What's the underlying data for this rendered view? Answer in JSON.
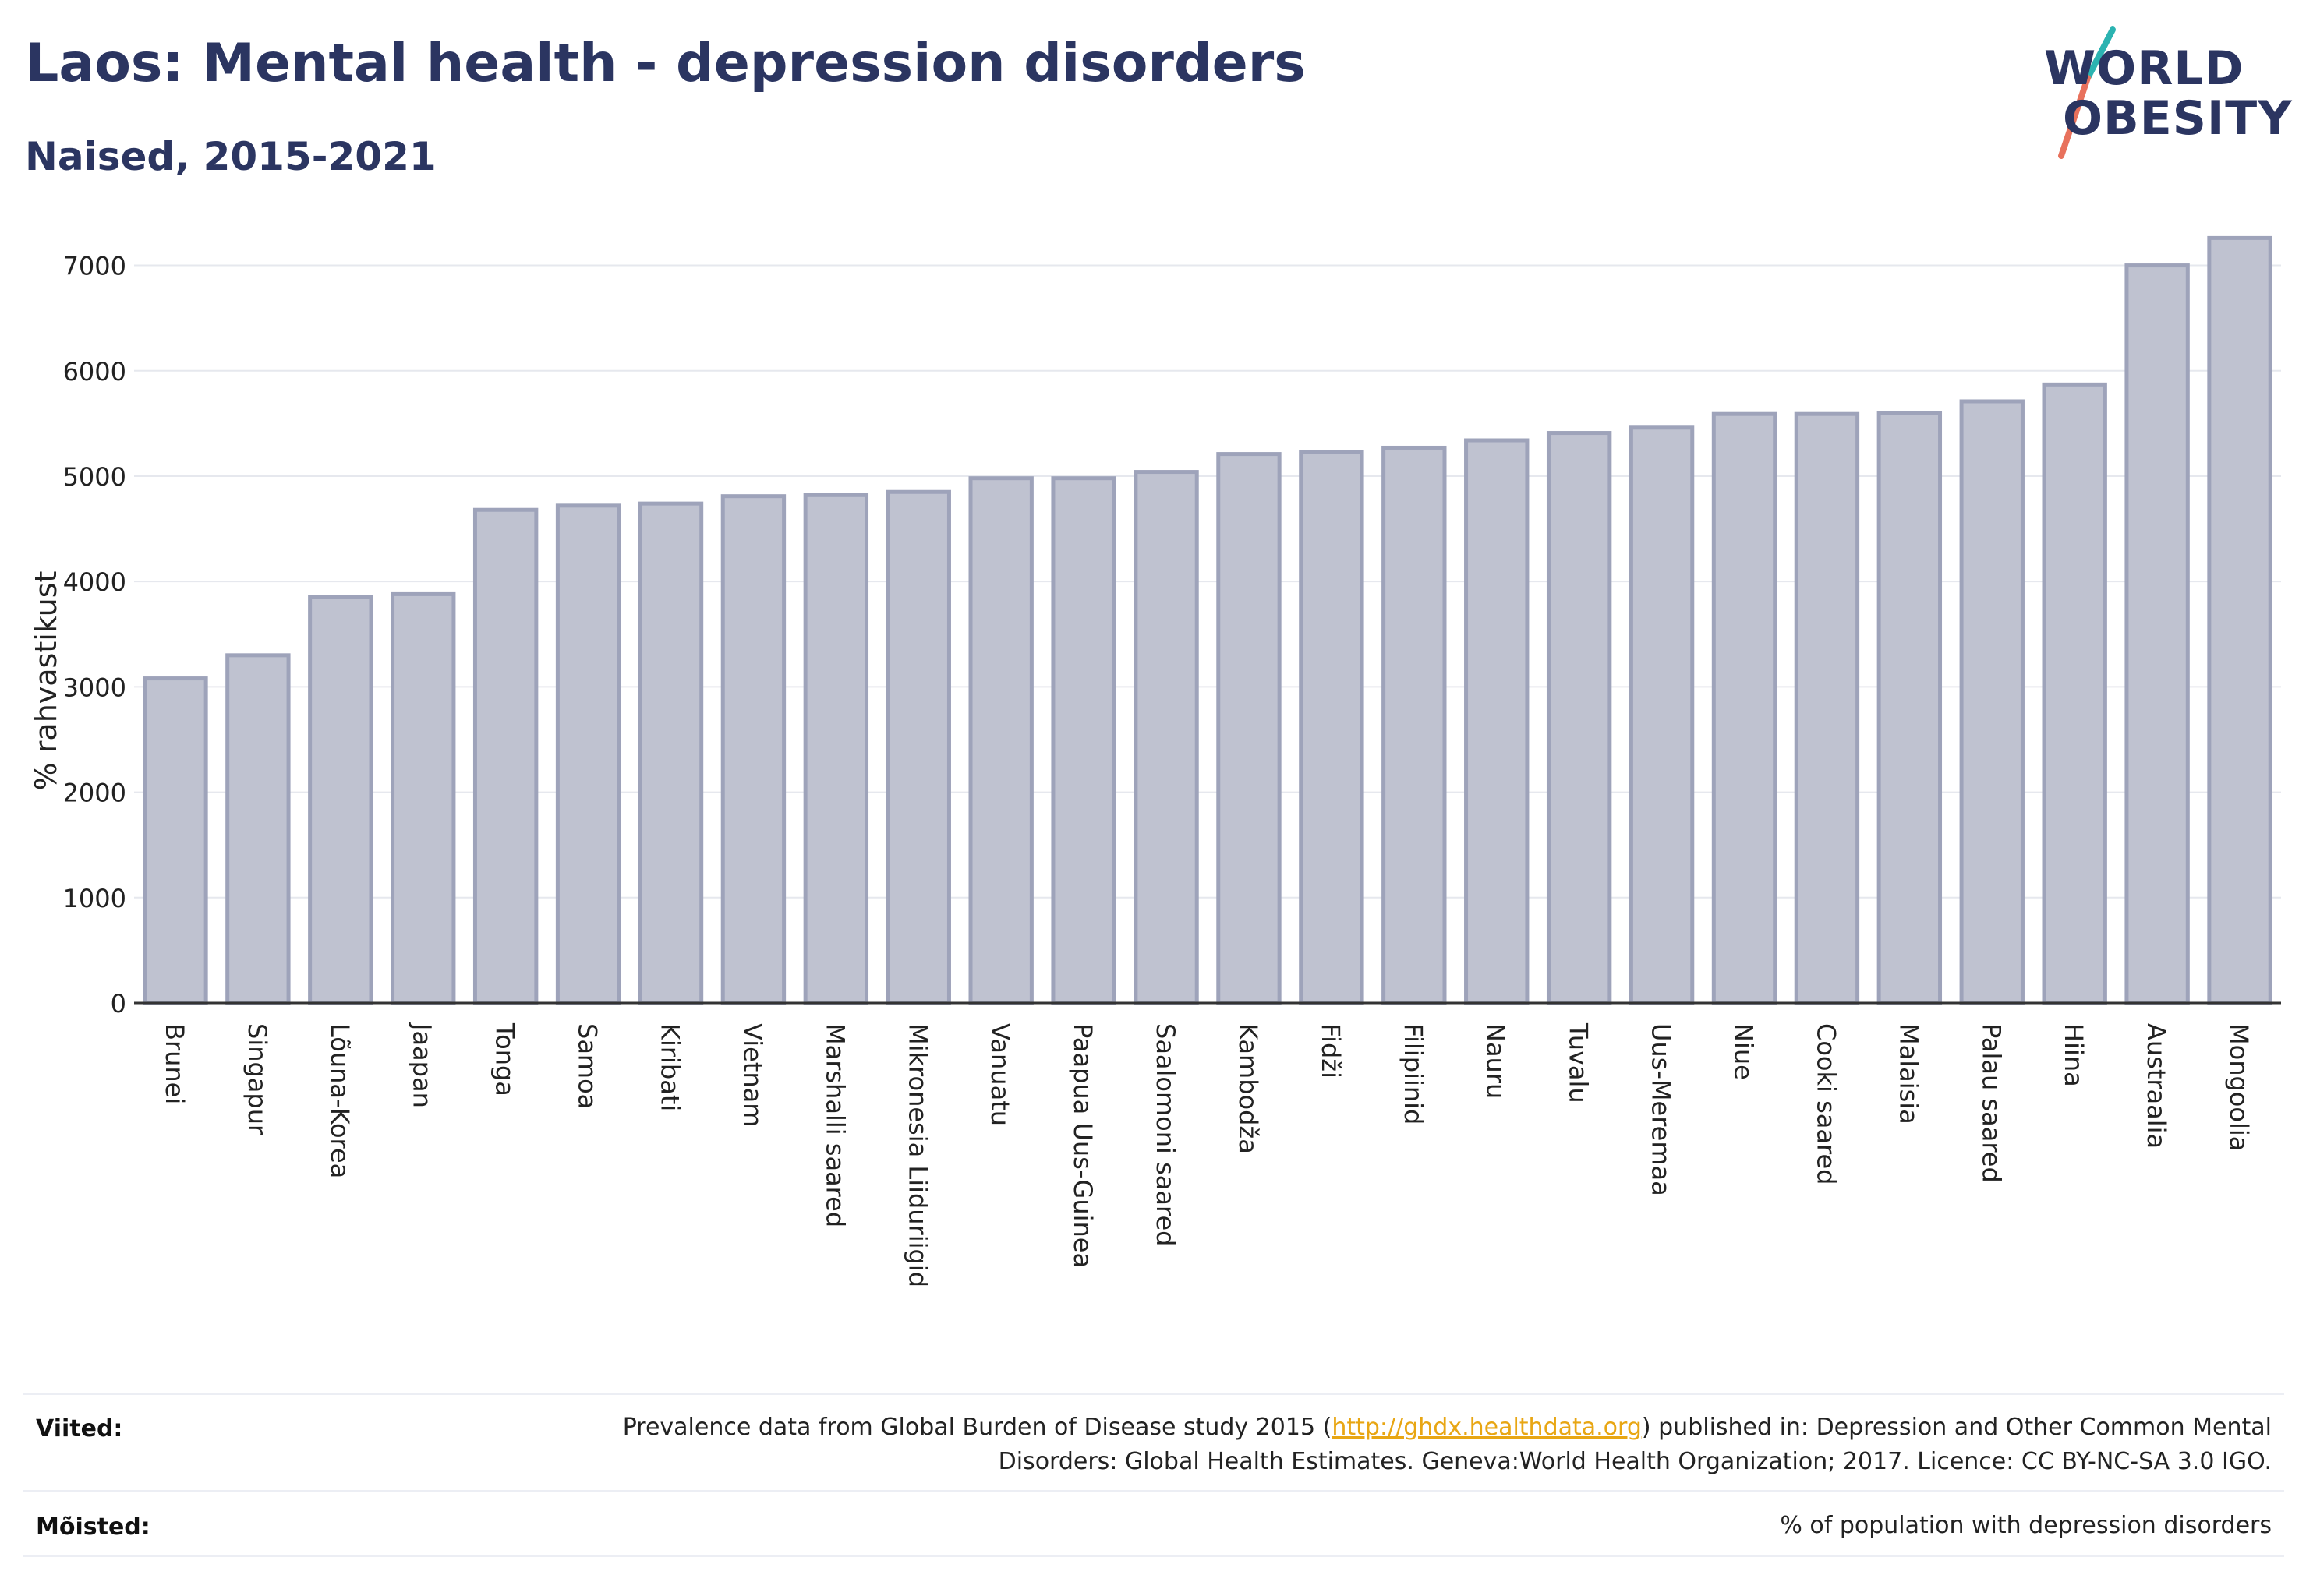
{
  "header": {
    "title": "Laos: Mental health - depression disorders",
    "subtitle": "Naised, 2015-2021"
  },
  "logo": {
    "line1": "WORLD",
    "line2": "OBESITY",
    "slash_teal": "#2bb3b1",
    "slash_coral": "#e8715c"
  },
  "colors": {
    "bar_fill": "#bfc2d0",
    "bar_stroke": "#9ea3ba",
    "text_dark": "#2b3561",
    "link": "#e8a613"
  },
  "chart_data": {
    "type": "bar",
    "ylabel": "% rahvastikust",
    "xlabel": "",
    "ylim": [
      0,
      7300
    ],
    "yticks": [
      0,
      1000,
      2000,
      3000,
      4000,
      5000,
      6000,
      7000
    ],
    "grid": true,
    "categories": [
      "Brunei",
      "Singapur",
      "Lõuna-Korea",
      "Jaapan",
      "Tonga",
      "Samoa",
      "Kiribati",
      "Vietnam",
      "Marshalli saared",
      "Mikronesia Liiduriigid",
      "Vanuatu",
      "Paapua Uus-Guinea",
      "Saalomoni saared",
      "Kambodža",
      "Fidži",
      "Filipiinid",
      "Nauru",
      "Tuvalu",
      "Uus-Meremaa",
      "Niue",
      "Cooki saared",
      "Malaisia",
      "Palau saared",
      "Hiina",
      "Austraalia",
      "Mongoolia"
    ],
    "values": [
      3080,
      3300,
      3850,
      3880,
      4680,
      4720,
      4740,
      4810,
      4820,
      4850,
      4980,
      4980,
      5040,
      5210,
      5230,
      5270,
      5340,
      5410,
      5460,
      5590,
      5590,
      5600,
      5710,
      5870,
      7000,
      7260
    ]
  },
  "references": {
    "label": "Viited:",
    "text_before": "Prevalence data from Global Burden of Disease study 2015 (",
    "link": "http://ghdx.healthdata.org",
    "text_after": ") published in: Depression and Other Common Mental Disorders: Global Health Estimates. Geneva:World Health Organization; 2017. Licence: CC BY-NC-SA 3.0 IGO."
  },
  "definitions": {
    "label": "Mõisted:",
    "text": "% of population with depression disorders"
  }
}
